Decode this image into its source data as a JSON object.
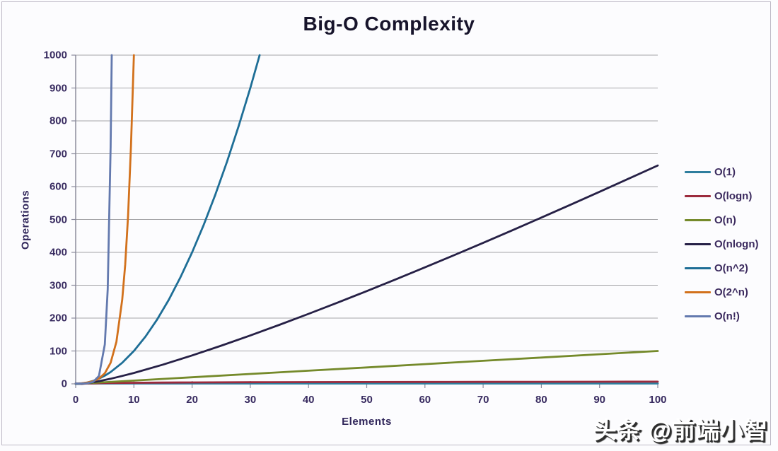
{
  "page": {
    "watermark": "头条 @前端小智"
  },
  "chart_data": {
    "type": "line",
    "title": "Big-O Complexity",
    "xlabel": "Elements",
    "ylabel": "Operations",
    "xlim": [
      0,
      100
    ],
    "ylim": [
      0,
      1000
    ],
    "x_ticks": [
      0,
      10,
      20,
      30,
      40,
      50,
      60,
      70,
      80,
      90,
      100
    ],
    "y_ticks": [
      0,
      100,
      200,
      300,
      400,
      500,
      600,
      700,
      800,
      900,
      1000
    ],
    "grid": "horizontal",
    "legend_position": "right",
    "colors": {
      "grid": "#A5A5A8",
      "axis": "#8B8B9C",
      "tick_text": "#382B60",
      "title_text": "#17142B",
      "background": "#FCFCFE",
      "frame_border": "#BDB9C6",
      "watermark_fill": "#FFFFFF",
      "watermark_shadow": "#2E2E2E"
    },
    "series": [
      {
        "name": "O(1)",
        "color": "#2E7E9E",
        "points": [
          [
            0,
            1
          ],
          [
            100,
            1
          ]
        ]
      },
      {
        "name": "O(logn)",
        "color": "#9C2B3D",
        "points": [
          [
            1,
            0
          ],
          [
            2,
            1
          ],
          [
            3,
            1.6
          ],
          [
            4,
            2
          ],
          [
            5,
            2.3
          ],
          [
            7,
            2.8
          ],
          [
            10,
            3.3
          ],
          [
            15,
            3.9
          ],
          [
            20,
            4.3
          ],
          [
            30,
            4.9
          ],
          [
            40,
            5.3
          ],
          [
            50,
            5.6
          ],
          [
            60,
            5.9
          ],
          [
            70,
            6.1
          ],
          [
            80,
            6.3
          ],
          [
            90,
            6.5
          ],
          [
            100,
            6.6
          ]
        ]
      },
      {
        "name": "O(n)",
        "color": "#758A2B",
        "points": [
          [
            0,
            0
          ],
          [
            10,
            10
          ],
          [
            20,
            20
          ],
          [
            30,
            30
          ],
          [
            40,
            40
          ],
          [
            50,
            50
          ],
          [
            60,
            60
          ],
          [
            70,
            70
          ],
          [
            80,
            80
          ],
          [
            90,
            90
          ],
          [
            100,
            100
          ]
        ]
      },
      {
        "name": "O(nlogn)",
        "color": "#262046",
        "points": [
          [
            0,
            0
          ],
          [
            1,
            0
          ],
          [
            2,
            2
          ],
          [
            4,
            8
          ],
          [
            6,
            15.5
          ],
          [
            8,
            24
          ],
          [
            10,
            33.2
          ],
          [
            15,
            58.6
          ],
          [
            20,
            86.4
          ],
          [
            25,
            116.1
          ],
          [
            30,
            147.2
          ],
          [
            35,
            179.5
          ],
          [
            40,
            212.9
          ],
          [
            45,
            247.2
          ],
          [
            50,
            282.2
          ],
          [
            55,
            317.9
          ],
          [
            60,
            354.4
          ],
          [
            65,
            391.4
          ],
          [
            70,
            428.9
          ],
          [
            75,
            467
          ],
          [
            80,
            505.8
          ],
          [
            85,
            544.8
          ],
          [
            90,
            584.3
          ],
          [
            95,
            624.2
          ],
          [
            100,
            664.4
          ]
        ]
      },
      {
        "name": "O(n^2)",
        "color": "#1E6E96",
        "points": [
          [
            0,
            0
          ],
          [
            1,
            1
          ],
          [
            2,
            4
          ],
          [
            3,
            9
          ],
          [
            4,
            16
          ],
          [
            5,
            25
          ],
          [
            6,
            36
          ],
          [
            8,
            64
          ],
          [
            10,
            100
          ],
          [
            12,
            144
          ],
          [
            14,
            196
          ],
          [
            16,
            256
          ],
          [
            18,
            324
          ],
          [
            20,
            400
          ],
          [
            22,
            484
          ],
          [
            24,
            576
          ],
          [
            26,
            676
          ],
          [
            28,
            784
          ],
          [
            30,
            900
          ],
          [
            31.6,
            1000
          ]
        ]
      },
      {
        "name": "O(2^n)",
        "color": "#D2711C",
        "points": [
          [
            0,
            1
          ],
          [
            1,
            2
          ],
          [
            2,
            4
          ],
          [
            3,
            8
          ],
          [
            4,
            16
          ],
          [
            5,
            32
          ],
          [
            6,
            64
          ],
          [
            7,
            128
          ],
          [
            8,
            256
          ],
          [
            8.5,
            362
          ],
          [
            9,
            512
          ],
          [
            9.5,
            724
          ],
          [
            10,
            1000
          ]
        ]
      },
      {
        "name": "O(n!)",
        "color": "#6379AE",
        "points": [
          [
            0,
            1
          ],
          [
            1,
            1
          ],
          [
            2,
            2
          ],
          [
            3,
            6
          ],
          [
            4,
            24
          ],
          [
            5,
            120
          ],
          [
            5.5,
            288
          ],
          [
            6,
            720
          ],
          [
            6.2,
            1000
          ]
        ]
      }
    ]
  }
}
